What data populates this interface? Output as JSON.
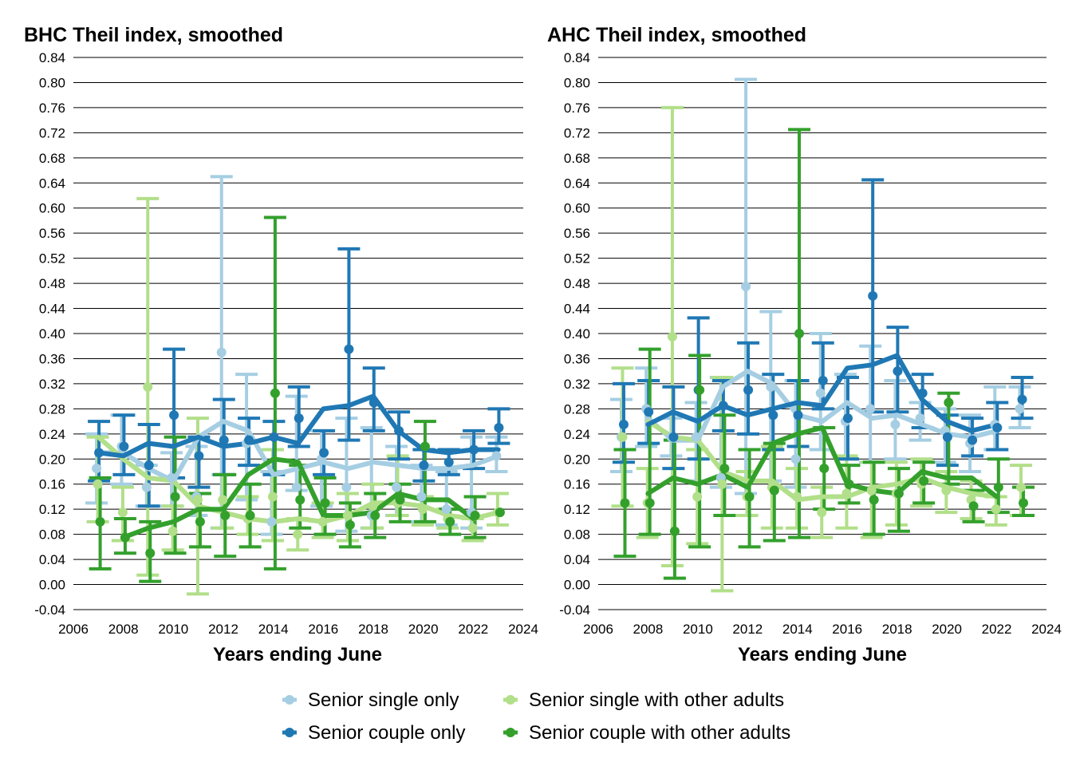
{
  "legend": [
    {
      "name": "Senior single only",
      "color": "#a6cee3"
    },
    {
      "name": "Senior single with other adults",
      "color": "#b2df8a"
    },
    {
      "name": "Senior couple only",
      "color": "#1f78b4"
    },
    {
      "name": "Senior couple with other adults",
      "color": "#33a02c"
    }
  ],
  "chart_data": [
    {
      "type": "line",
      "title": "BHC Theil index, smoothed",
      "xlabel": "Years ending June",
      "ylabel": "",
      "xlim": [
        2006,
        2024
      ],
      "ylim": [
        -0.04,
        0.84
      ],
      "xticks": [
        2006,
        2008,
        2010,
        2012,
        2014,
        2016,
        2018,
        2020,
        2022,
        2024
      ],
      "yticks": [
        "-0.04",
        "0.00",
        "0.04",
        "0.08",
        "0.12",
        "0.16",
        "0.20",
        "0.24",
        "0.28",
        "0.32",
        "0.36",
        "0.40",
        "0.44",
        "0.48",
        "0.52",
        "0.56",
        "0.60",
        "0.64",
        "0.68",
        "0.72",
        "0.76",
        "0.80",
        "0.84"
      ],
      "grid": true,
      "x": [
        2007,
        2008,
        2009,
        2010,
        2011,
        2012,
        2013,
        2014,
        2015,
        2016,
        2017,
        2018,
        2019,
        2020,
        2021,
        2022,
        2023
      ],
      "series": [
        {
          "name": "Senior single only",
          "color": "#a6cee3",
          "points": [
            0.185,
            0.22,
            0.155,
            0.17,
            0.14,
            0.37,
            0.225,
            0.1,
            0.155,
            0.2,
            0.155,
            0.11,
            0.155,
            0.14,
            0.12,
            0.115,
            0.205
          ],
          "smoothed": [
            0.21,
            0.21,
            0.185,
            0.165,
            0.235,
            0.26,
            0.245,
            0.175,
            0.185,
            0.195,
            0.185,
            0.195,
            0.19,
            0.185,
            0.185,
            0.19,
            0.205
          ],
          "lower": [
            0.13,
            0.16,
            0.125,
            0.125,
            0.11,
            0.09,
            0.135,
            0.08,
            0.15,
            0.125,
            0.085,
            0.09,
            0.11,
            0.1,
            0.095,
            0.09,
            0.18
          ],
          "upper": [
            0.24,
            0.27,
            0.19,
            0.21,
            0.22,
            0.65,
            0.335,
            0.18,
            0.3,
            0.245,
            0.265,
            0.25,
            0.22,
            0.19,
            0.18,
            0.235,
            0.235
          ]
        },
        {
          "name": "Senior single with other adults",
          "color": "#b2df8a",
          "points": [
            0.16,
            0.115,
            0.315,
            0.085,
            0.135,
            0.135,
            0.105,
            0.14,
            0.08,
            0.1,
            0.11,
            0.125,
            0.13,
            0.12,
            0.105,
            0.09,
            0.115
          ],
          "smoothed": [
            0.235,
            0.2,
            0.17,
            0.165,
            0.125,
            0.115,
            0.105,
            0.1,
            0.105,
            0.1,
            0.11,
            0.13,
            0.13,
            0.125,
            0.11,
            0.105,
            0.115
          ],
          "lower": [
            0.1,
            0.07,
            0.015,
            0.055,
            -0.015,
            0.09,
            0.08,
            0.07,
            0.055,
            0.075,
            0.07,
            0.09,
            0.11,
            0.095,
            0.09,
            0.07,
            0.095
          ],
          "upper": [
            0.235,
            0.155,
            0.615,
            0.125,
            0.265,
            0.175,
            0.14,
            0.215,
            0.105,
            0.13,
            0.145,
            0.16,
            0.205,
            0.14,
            0.12,
            0.105,
            0.145
          ]
        },
        {
          "name": "Senior couple only",
          "color": "#1f78b4",
          "points": [
            0.21,
            0.22,
            0.19,
            0.27,
            0.205,
            0.23,
            0.23,
            0.235,
            0.265,
            0.21,
            0.375,
            0.29,
            0.245,
            0.19,
            0.195,
            0.215,
            0.25
          ],
          "smoothed": [
            0.21,
            0.205,
            0.225,
            0.22,
            0.235,
            0.22,
            0.225,
            0.235,
            0.225,
            0.28,
            0.285,
            0.3,
            0.245,
            0.215,
            0.21,
            0.215,
            0.215
          ],
          "lower": [
            0.165,
            0.175,
            0.125,
            0.17,
            0.155,
            0.175,
            0.19,
            0.175,
            0.22,
            0.175,
            0.23,
            0.245,
            0.2,
            0.165,
            0.175,
            0.185,
            0.225
          ],
          "upper": [
            0.26,
            0.27,
            0.255,
            0.375,
            0.235,
            0.295,
            0.265,
            0.26,
            0.315,
            0.245,
            0.535,
            0.345,
            0.275,
            0.215,
            0.215,
            0.245,
            0.28
          ]
        },
        {
          "name": "Senior couple with other adults",
          "color": "#33a02c",
          "points": [
            0.1,
            0.075,
            0.05,
            0.14,
            0.1,
            0.11,
            0.11,
            0.305,
            0.135,
            0.13,
            0.095,
            0.11,
            0.135,
            0.22,
            0.1,
            0.11,
            0.115
          ],
          "smoothed": [
            null,
            0.075,
            0.09,
            0.1,
            0.12,
            0.12,
            0.175,
            0.2,
            0.195,
            0.11,
            0.11,
            0.115,
            0.145,
            0.135,
            0.135,
            0.105,
            null
          ],
          "lower": [
            0.025,
            0.05,
            0.005,
            0.05,
            0.06,
            0.045,
            0.06,
            0.025,
            0.09,
            0.08,
            0.06,
            0.075,
            0.1,
            0.1,
            0.08,
            0.075,
            null
          ],
          "upper": [
            0.17,
            0.105,
            0.1,
            0.235,
            0.145,
            0.175,
            0.16,
            0.585,
            0.19,
            0.17,
            0.13,
            0.145,
            0.16,
            0.26,
            0.12,
            0.14,
            null
          ]
        }
      ]
    },
    {
      "type": "line",
      "title": "AHC Theil index, smoothed",
      "xlabel": "Years ending June",
      "ylabel": "",
      "xlim": [
        2006,
        2024
      ],
      "ylim": [
        -0.04,
        0.84
      ],
      "xticks": [
        2006,
        2008,
        2010,
        2012,
        2014,
        2016,
        2018,
        2020,
        2022,
        2024
      ],
      "yticks": [
        "-0.04",
        "0.00",
        "0.04",
        "0.08",
        "0.12",
        "0.16",
        "0.20",
        "0.24",
        "0.28",
        "0.32",
        "0.36",
        "0.40",
        "0.44",
        "0.48",
        "0.52",
        "0.56",
        "0.60",
        "0.64",
        "0.68",
        "0.72",
        "0.76",
        "0.80",
        "0.84"
      ],
      "grid": true,
      "x": [
        2007,
        2008,
        2009,
        2010,
        2011,
        2012,
        2013,
        2014,
        2015,
        2016,
        2017,
        2018,
        2019,
        2020,
        2021,
        2022,
        2023
      ],
      "series": [
        {
          "name": "Senior single only",
          "color": "#a6cee3",
          "points": [
            0.235,
            0.28,
            0.235,
            0.235,
            0.17,
            0.475,
            0.315,
            0.2,
            0.305,
            0.26,
            0.28,
            0.255,
            0.265,
            0.245,
            0.225,
            0.255,
            0.28
          ],
          "smoothed": [
            null,
            0.265,
            0.23,
            0.23,
            0.315,
            0.34,
            0.32,
            0.27,
            0.26,
            0.29,
            0.265,
            0.27,
            0.255,
            0.24,
            0.235,
            0.245,
            null
          ],
          "lower": [
            0.18,
            0.22,
            0.205,
            0.165,
            0.155,
            0.145,
            0.165,
            0.155,
            0.215,
            0.2,
            0.195,
            0.2,
            0.23,
            0.195,
            0.18,
            0.215,
            0.25
          ],
          "upper": [
            0.295,
            0.345,
            0.265,
            0.29,
            0.33,
            0.805,
            0.435,
            0.325,
            0.4,
            0.335,
            0.38,
            0.325,
            0.29,
            0.28,
            0.27,
            0.315,
            0.315
          ]
        },
        {
          "name": "Senior single with other adults",
          "color": "#b2df8a",
          "points": [
            0.235,
            0.13,
            0.395,
            0.14,
            0.16,
            0.14,
            0.155,
            0.14,
            0.115,
            0.145,
            0.15,
            0.145,
            0.16,
            0.15,
            0.135,
            0.12,
            0.155
          ],
          "smoothed": [
            null,
            0.26,
            0.235,
            0.23,
            0.18,
            0.165,
            0.165,
            0.135,
            0.14,
            0.14,
            0.155,
            0.16,
            0.17,
            0.155,
            0.145,
            0.14,
            null
          ],
          "lower": [
            0.125,
            0.075,
            0.03,
            0.065,
            -0.01,
            0.11,
            0.09,
            0.09,
            0.075,
            0.09,
            0.075,
            0.095,
            0.125,
            0.115,
            0.105,
            0.095,
            0.11
          ],
          "upper": [
            0.345,
            0.185,
            0.76,
            0.215,
            0.33,
            0.18,
            0.22,
            0.185,
            0.155,
            0.205,
            0.195,
            0.195,
            0.2,
            0.18,
            0.165,
            0.14,
            0.19
          ]
        },
        {
          "name": "Senior couple only",
          "color": "#1f78b4",
          "points": [
            0.255,
            0.275,
            0.235,
            0.31,
            0.285,
            0.31,
            0.27,
            0.27,
            0.325,
            0.265,
            0.46,
            0.34,
            0.305,
            0.235,
            0.23,
            0.25,
            0.295
          ],
          "smoothed": [
            null,
            0.255,
            0.275,
            0.26,
            0.285,
            0.27,
            0.28,
            0.29,
            0.285,
            0.345,
            0.35,
            0.365,
            0.295,
            0.26,
            0.245,
            0.255,
            null
          ],
          "lower": [
            0.195,
            0.225,
            0.185,
            0.2,
            0.245,
            0.24,
            0.215,
            0.22,
            0.28,
            0.2,
            0.275,
            0.275,
            0.25,
            0.19,
            0.205,
            0.215,
            0.265
          ],
          "upper": [
            0.32,
            0.325,
            0.315,
            0.425,
            0.325,
            0.385,
            0.335,
            0.325,
            0.385,
            0.33,
            0.645,
            0.41,
            0.335,
            0.27,
            0.265,
            0.29,
            0.33
          ]
        },
        {
          "name": "Senior couple with other adults",
          "color": "#33a02c",
          "points": [
            0.13,
            0.13,
            0.085,
            0.31,
            0.185,
            0.14,
            0.15,
            0.4,
            0.185,
            0.16,
            0.135,
            0.145,
            0.165,
            0.29,
            0.125,
            0.155,
            0.13
          ],
          "smoothed": [
            null,
            0.145,
            0.17,
            0.16,
            0.175,
            0.155,
            0.225,
            0.24,
            0.25,
            0.16,
            0.15,
            0.145,
            0.18,
            0.17,
            0.17,
            0.14,
            null
          ],
          "lower": [
            0.045,
            0.08,
            0.01,
            0.06,
            0.11,
            0.06,
            0.07,
            0.075,
            0.12,
            0.13,
            0.08,
            0.085,
            0.13,
            0.16,
            0.1,
            0.115,
            0.11
          ],
          "upper": [
            0.215,
            0.375,
            0.23,
            0.365,
            0.27,
            0.215,
            0.225,
            0.725,
            0.25,
            0.19,
            0.195,
            0.185,
            0.195,
            0.305,
            0.15,
            0.2,
            0.155
          ]
        }
      ]
    }
  ]
}
